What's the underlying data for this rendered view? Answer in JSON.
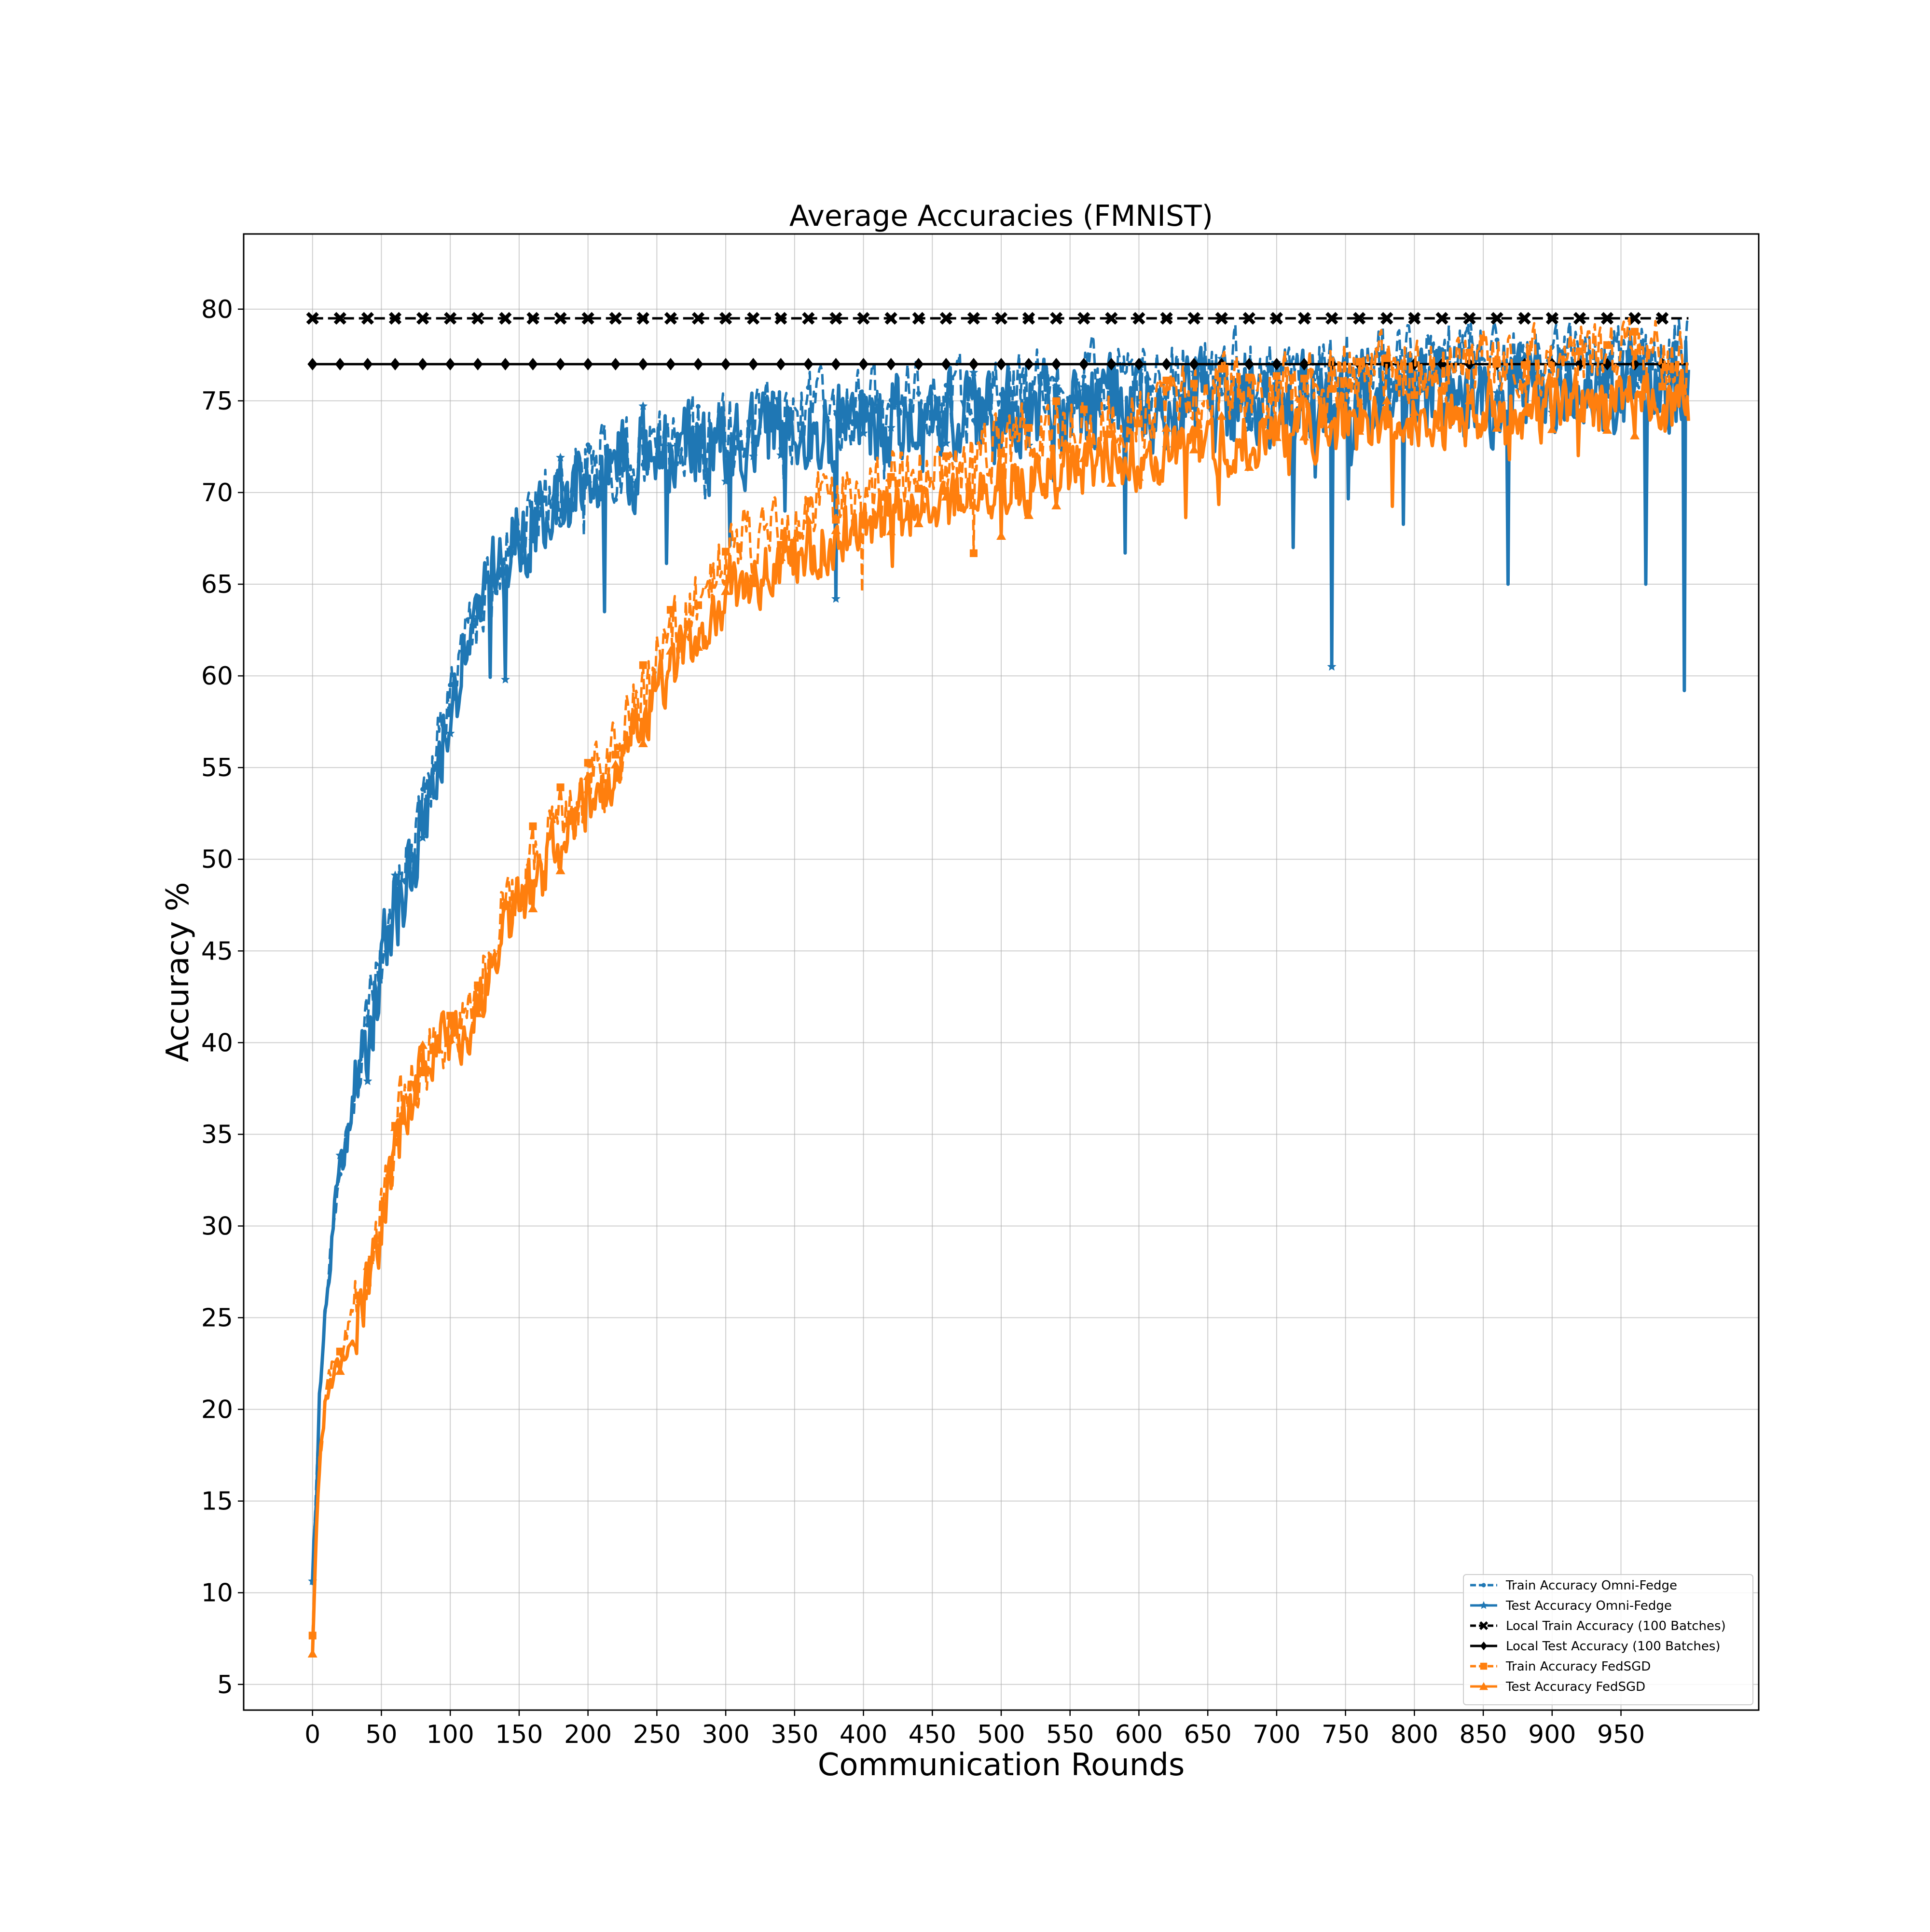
{
  "chart_data": {
    "type": "line",
    "title": "Average Accuracies (FMNIST)",
    "xlabel": "Communication Rounds",
    "ylabel": "Accuracy %",
    "xlim": [
      -50,
      1050
    ],
    "ylim": [
      3.6,
      84.1
    ],
    "xticks": [
      0,
      50,
      100,
      150,
      200,
      250,
      300,
      350,
      400,
      450,
      500,
      550,
      600,
      650,
      700,
      750,
      800,
      850,
      900,
      950
    ],
    "yticks": [
      5,
      10,
      15,
      20,
      25,
      30,
      35,
      40,
      45,
      50,
      55,
      60,
      65,
      70,
      75,
      80
    ],
    "grid": true,
    "legend_position": "lower right",
    "x_range": [
      0,
      999
    ],
    "series": [
      {
        "name": "Train Accuracy Omni-Fedge",
        "color": "#1f77b4",
        "line_style": "dashed",
        "marker": "point",
        "trend": {
          "x": [
            0,
            2,
            5,
            10,
            15,
            20,
            25,
            30,
            40,
            50,
            60,
            70,
            80,
            90,
            100,
            110,
            120,
            130,
            140,
            150,
            160,
            170,
            180,
            190,
            200,
            220,
            240,
            260,
            280,
            300,
            320,
            340,
            360,
            380,
            400,
            450,
            500,
            550,
            600,
            650,
            700,
            750,
            800,
            850,
            900,
            950,
            999
          ],
          "y": [
            11.0,
            14.5,
            20.5,
            26.0,
            30.5,
            33.5,
            35.0,
            37.5,
            41.0,
            44.5,
            47.5,
            50.0,
            52.5,
            55.5,
            58.5,
            61.5,
            63.5,
            65.5,
            67.0,
            68.0,
            69.0,
            69.8,
            70.4,
            70.9,
            71.3,
            71.9,
            72.4,
            72.8,
            73.2,
            73.5,
            73.8,
            74.1,
            74.3,
            74.5,
            74.7,
            75.2,
            75.6,
            76.0,
            76.3,
            76.6,
            76.9,
            77.1,
            77.3,
            77.5,
            77.6,
            77.7,
            77.8
          ]
        },
        "noise": 1.8
      },
      {
        "name": "Test Accuracy Omni-Fedge",
        "color": "#1f77b4",
        "line_style": "solid",
        "marker": "star",
        "trend": {
          "x": [
            0,
            2,
            5,
            10,
            15,
            20,
            25,
            30,
            40,
            50,
            60,
            70,
            80,
            90,
            100,
            110,
            120,
            130,
            140,
            150,
            160,
            170,
            180,
            190,
            200,
            220,
            240,
            260,
            280,
            300,
            320,
            340,
            360,
            380,
            400,
            450,
            500,
            550,
            600,
            650,
            700,
            750,
            800,
            850,
            900,
            950,
            999
          ],
          "y": [
            11.0,
            14.0,
            20.0,
            25.5,
            30.0,
            33.0,
            34.5,
            37.0,
            40.5,
            44.0,
            47.0,
            49.5,
            52.0,
            55.0,
            58.0,
            61.0,
            63.0,
            65.0,
            66.5,
            67.5,
            68.5,
            69.3,
            69.9,
            70.4,
            70.8,
            71.4,
            71.9,
            72.3,
            72.6,
            72.9,
            73.1,
            73.3,
            73.5,
            73.6,
            73.8,
            74.1,
            74.4,
            74.6,
            74.8,
            75.0,
            75.1,
            75.2,
            75.3,
            75.3,
            75.4,
            75.4,
            75.4
          ]
        },
        "noise": 2.2,
        "dips": [
          {
            "x": 740,
            "y": 60.5
          },
          {
            "x": 996,
            "y": 59.2
          },
          {
            "x": 968,
            "y": 65.0
          },
          {
            "x": 868,
            "y": 65.0
          },
          {
            "x": 712,
            "y": 67.0
          },
          {
            "x": 212,
            "y": 63.5
          },
          {
            "x": 140,
            "y": 59.8
          },
          {
            "x": 380,
            "y": 64.2
          },
          {
            "x": 590,
            "y": 66.7
          }
        ]
      },
      {
        "name": "Local Train Accuracy (100 Batches)",
        "color": "#000000",
        "line_style": "dashed",
        "marker": "x",
        "constant": 79.5
      },
      {
        "name": "Local Test Accuracy (100 Batches)",
        "color": "#000000",
        "line_style": "solid",
        "marker": "diamond",
        "constant": 77.0
      },
      {
        "name": "Train Accuracy FedSGD",
        "color": "#ff7f0e",
        "line_style": "dashed",
        "marker": "square",
        "trend": {
          "x": [
            0,
            2,
            5,
            10,
            20,
            30,
            40,
            50,
            60,
            70,
            80,
            90,
            100,
            120,
            140,
            160,
            180,
            200,
            220,
            240,
            260,
            280,
            300,
            320,
            340,
            360,
            380,
            400,
            450,
            500,
            550,
            600,
            650,
            700,
            750,
            800,
            850,
            900,
            950,
            999
          ],
          "y": [
            7.5,
            12.0,
            17.0,
            21.5,
            23.0,
            25.0,
            27.0,
            31.0,
            35.0,
            37.5,
            39.0,
            40.0,
            40.5,
            43.0,
            47.5,
            49.5,
            52.0,
            54.0,
            56.5,
            59.0,
            62.5,
            64.0,
            66.5,
            67.5,
            68.0,
            68.8,
            69.5,
            70.0,
            71.0,
            72.5,
            73.5,
            74.5,
            75.2,
            75.8,
            76.3,
            76.7,
            77.0,
            77.2,
            77.4,
            77.5
          ]
        },
        "noise": 1.7
      },
      {
        "name": "Test Accuracy FedSGD",
        "color": "#ff7f0e",
        "line_style": "solid",
        "marker": "triangle",
        "trend": {
          "x": [
            0,
            2,
            5,
            10,
            20,
            30,
            40,
            50,
            60,
            70,
            80,
            90,
            100,
            120,
            140,
            160,
            180,
            200,
            220,
            240,
            260,
            280,
            300,
            320,
            340,
            360,
            380,
            400,
            450,
            500,
            550,
            600,
            650,
            700,
            750,
            800,
            850,
            900,
            950,
            999
          ],
          "y": [
            7.1,
            11.5,
            16.5,
            21.0,
            22.5,
            24.5,
            26.5,
            30.0,
            34.0,
            36.5,
            38.5,
            39.5,
            40.0,
            42.0,
            46.5,
            48.5,
            51.0,
            53.0,
            55.0,
            57.5,
            60.5,
            62.5,
            64.5,
            65.5,
            66.2,
            66.8,
            67.5,
            68.2,
            69.2,
            70.3,
            71.2,
            72.0,
            72.7,
            73.2,
            73.6,
            74.0,
            74.3,
            74.5,
            74.7,
            74.8
          ]
        },
        "noise": 1.5
      }
    ]
  }
}
